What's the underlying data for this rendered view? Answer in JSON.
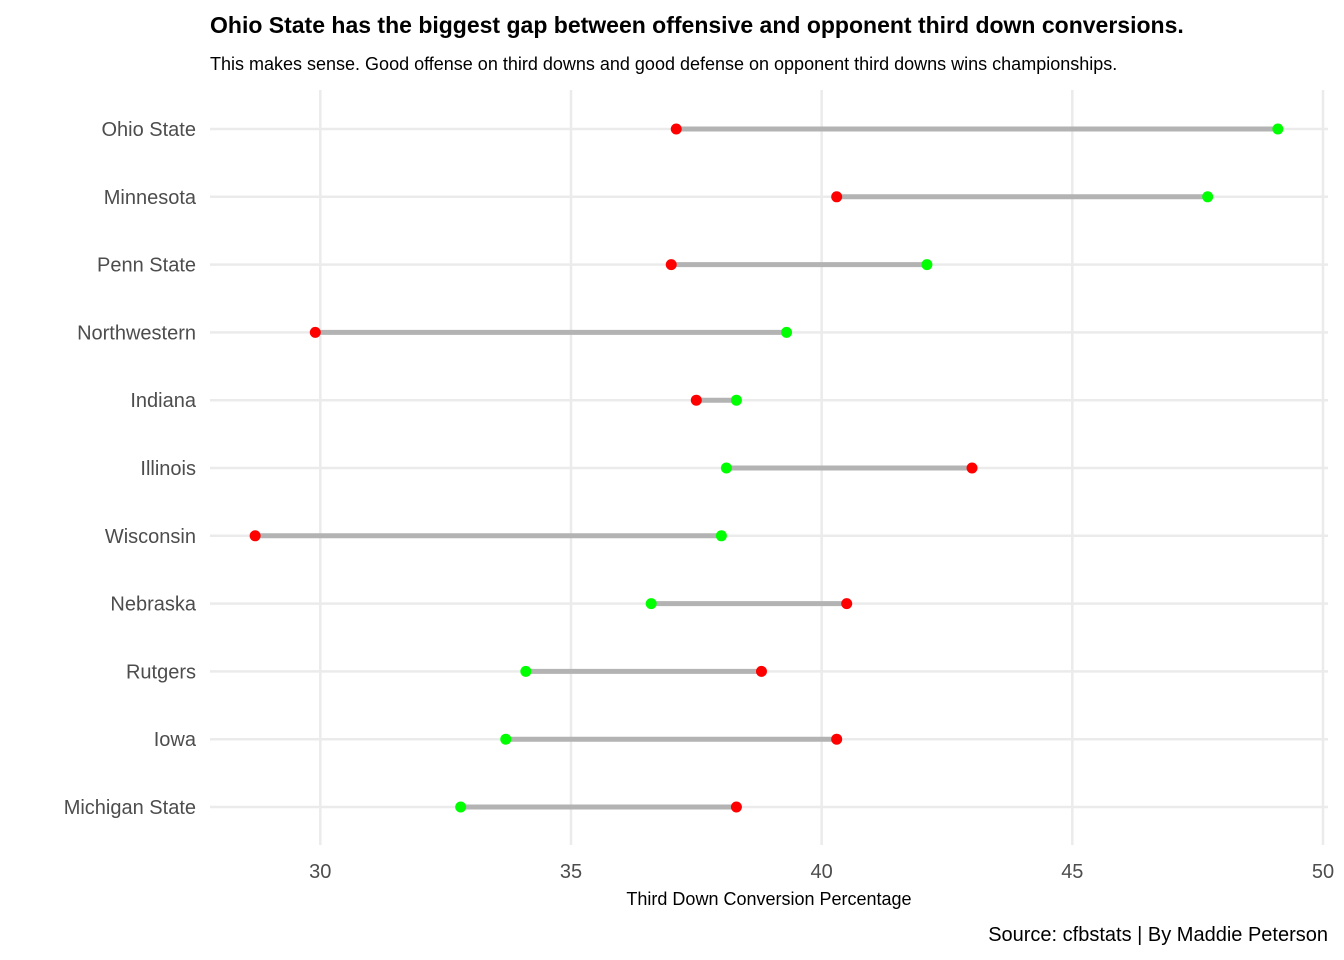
{
  "chart_data": {
    "type": "dumbbell",
    "title": "Ohio State has the biggest gap between offensive and opponent third down conversions.",
    "subtitle": "This makes sense. Good offense on third downs and good defense on opponent third downs wins championships.",
    "xlabel": "Third Down Conversion Percentage",
    "ylabel": "",
    "caption": "Source: cfbstats | By Maddie Peterson",
    "xlim": [
      27.8,
      50.1
    ],
    "xticks": [
      30,
      35,
      40,
      45,
      50
    ],
    "grid": true,
    "colors": {
      "offense": "#00ff00",
      "opponent": "#ff0000",
      "segment": "#b3b3b3"
    },
    "categories": [
      "Ohio State",
      "Minnesota",
      "Penn State",
      "Northwestern",
      "Indiana",
      "Illinois",
      "Wisconsin",
      "Nebraska",
      "Rutgers",
      "Iowa",
      "Michigan State"
    ],
    "series": [
      {
        "key": "offense",
        "values": [
          49.1,
          47.7,
          42.1,
          39.3,
          38.3,
          38.1,
          38.0,
          36.6,
          34.1,
          33.7,
          32.8
        ]
      },
      {
        "key": "opponent",
        "values": [
          37.1,
          40.3,
          37.0,
          29.9,
          37.5,
          43.0,
          28.7,
          40.5,
          38.8,
          40.3,
          38.3
        ]
      }
    ]
  }
}
